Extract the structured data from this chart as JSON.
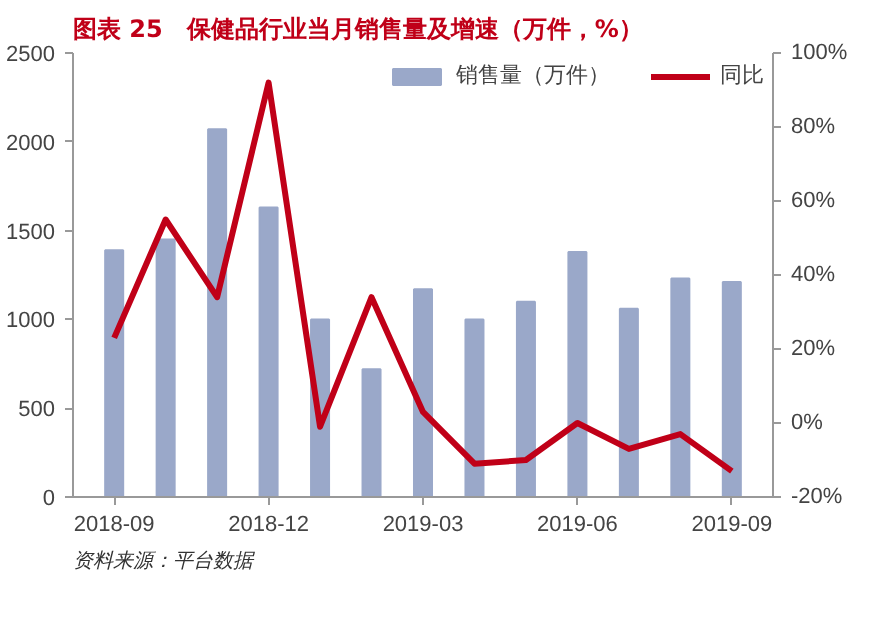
{
  "chart_data": {
    "type": "bar",
    "title": "图表 25　保健品行业当月销售量及增速（万件，%）",
    "categories": [
      "2018-09",
      null,
      null,
      "2018-12",
      null,
      null,
      "2019-03",
      null,
      null,
      "2019-06",
      null,
      null,
      "2019-09"
    ],
    "series": [
      {
        "name": "销售量（万件）",
        "color": "#9aa8c9",
        "values": [
          1390,
          1450,
          2070,
          1630,
          1000,
          720,
          1170,
          1000,
          1100,
          1380,
          1060,
          1230,
          1210
        ]
      },
      {
        "name": "同比",
        "type": "line",
        "axis": "y2",
        "color": "#c00018",
        "values": [
          23,
          55,
          34,
          92,
          -1,
          34,
          3,
          -11,
          -10,
          0,
          -7,
          -3,
          -13
        ]
      }
    ],
    "ylim": [
      0,
      2500
    ],
    "yticks": [
      0,
      500,
      1000,
      1500,
      2000,
      2500
    ],
    "y2lim": [
      -20,
      100
    ],
    "y2ticks": [
      {
        "value": -20,
        "label": "-20%"
      },
      {
        "value": 0,
        "label": "0%"
      },
      {
        "value": 20,
        "label": "20%"
      },
      {
        "value": 40,
        "label": "40%"
      },
      {
        "value": 60,
        "label": "60%"
      },
      {
        "value": 80,
        "label": "80%"
      },
      {
        "value": 100,
        "label": "100%"
      }
    ],
    "legend": "top right",
    "grid": false,
    "annotations": [
      "资料来源：平台数据"
    ]
  }
}
